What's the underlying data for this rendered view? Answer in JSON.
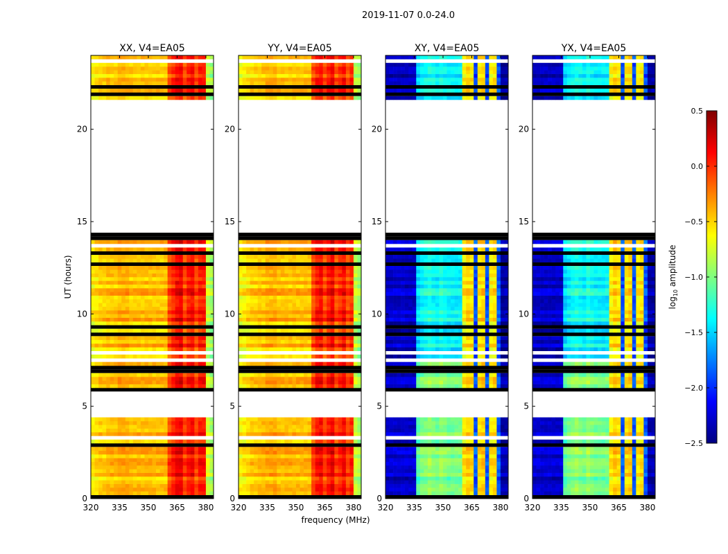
{
  "chart_data": {
    "type": "heatmap",
    "suptitle": "2019-11-07 0.0-24.0",
    "xlabel": "frequency (MHz)",
    "ylabel": "UT (hours)",
    "xlim": [
      320,
      384
    ],
    "ylim": [
      0,
      24
    ],
    "xticks": [
      320,
      335,
      350,
      365,
      380
    ],
    "yticks": [
      0,
      5,
      10,
      15,
      20
    ],
    "freq_bin_width_mhz": 2,
    "time_bin_hours": 0.2,
    "data_segments_hours": [
      [
        0,
        4.5
      ],
      [
        5.8,
        7.4
      ],
      [
        7.6,
        14.5
      ],
      [
        21.7,
        24
      ]
    ],
    "flagged_fraction": 0.13,
    "panels": [
      {
        "title": "XX, V4=EA05",
        "profile": [
          -0.6,
          -0.55,
          -0.5,
          -0.5,
          -0.45,
          -0.45,
          -0.45,
          -0.4,
          -0.4,
          -0.4,
          -0.45,
          -0.45,
          -0.45,
          -0.45,
          -0.45,
          -0.45,
          -0.45,
          -0.45,
          -0.45,
          -0.45,
          -0.1,
          0.0,
          0.12,
          0.15,
          -0.1,
          0.05,
          0.1,
          -0.1,
          0.05,
          0.05,
          -0.8,
          -0.9
        ]
      },
      {
        "title": "YY, V4=EA05",
        "profile": [
          -0.65,
          -0.6,
          -0.55,
          -0.5,
          -0.5,
          -0.45,
          -0.45,
          -0.4,
          -0.4,
          -0.4,
          -0.45,
          -0.45,
          -0.45,
          -0.45,
          -0.45,
          -0.45,
          -0.45,
          -0.45,
          -0.45,
          -0.1,
          0.05,
          0.1,
          -0.1,
          0.05,
          0.15,
          -0.1,
          0.0,
          0.1,
          -0.1,
          0.0,
          -0.8,
          -0.9
        ]
      },
      {
        "title": "XY, V4=EA05",
        "profile": [
          -2.3,
          -2.3,
          -2.3,
          -2.3,
          -2.3,
          -2.3,
          -2.3,
          -2.3,
          -1.5,
          -1.4,
          -1.35,
          -1.3,
          -1.35,
          -1.4,
          -1.3,
          -1.35,
          -1.4,
          -1.4,
          -1.4,
          -1.4,
          -0.6,
          -0.5,
          -0.55,
          -1.9,
          -0.55,
          -0.5,
          -1.9,
          -0.6,
          -0.55,
          -1.9,
          -2.4,
          -2.4
        ]
      },
      {
        "title": "YX, V4=EA05",
        "profile": [
          -2.3,
          -2.3,
          -2.3,
          -2.3,
          -2.3,
          -2.3,
          -2.3,
          -2.3,
          -1.5,
          -1.4,
          -1.35,
          -1.3,
          -1.35,
          -1.4,
          -1.3,
          -1.35,
          -1.4,
          -1.4,
          -1.4,
          -1.4,
          -0.6,
          -0.5,
          -0.55,
          -1.9,
          -0.55,
          -0.5,
          -1.9,
          -0.6,
          -0.55,
          -1.9,
          -2.4,
          -2.4
        ]
      }
    ],
    "colorbar": {
      "label": "log10 amplitude",
      "label_main": "log",
      "label_sub": "10",
      "label_rest": " amplitude",
      "range": [
        -2.5,
        0.5
      ],
      "ticks": [
        "0.5",
        "0.0",
        "−0.5",
        "−1.0",
        "−1.5",
        "−2.0",
        "−2.5"
      ],
      "colormap": "jet"
    }
  }
}
